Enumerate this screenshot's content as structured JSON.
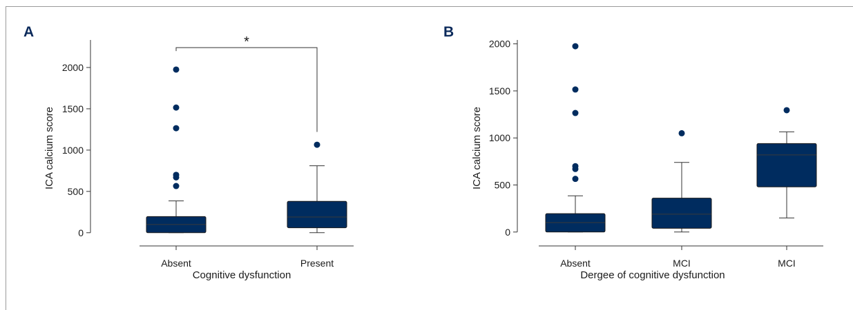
{
  "colors": {
    "box_fill": "#002c5f",
    "outlier": "#002c5f",
    "line": "#333333",
    "panel_label": "#0b2a5b"
  },
  "chart_data": [
    {
      "panel": "A",
      "type": "box",
      "xlabel": "Cognitive dysfunction",
      "ylabel": "ICA calcium score",
      "ylim": [
        -60,
        2400
      ],
      "yticks": [
        0,
        500,
        1000,
        1500,
        2000
      ],
      "categories": [
        "Absent",
        "Present"
      ],
      "boxes": [
        {
          "category": "Absent",
          "min": 0,
          "q1": 0,
          "median": 100,
          "q3": 195,
          "max": 385,
          "outliers": [
            565,
            670,
            700,
            1265,
            1515,
            1975
          ]
        },
        {
          "category": "Present",
          "min": 0,
          "q1": 60,
          "median": 190,
          "q3": 380,
          "max": 810,
          "outliers": [
            1065
          ]
        }
      ],
      "significance": {
        "from": "Absent",
        "to": "Present",
        "y": 2240,
        "right_drop_to": 1220,
        "label": "*"
      }
    },
    {
      "panel": "B",
      "type": "box",
      "xlabel": "Dergee of cognitive dysfunction",
      "ylabel": "ICA calcium score",
      "ylim": [
        -60,
        2100
      ],
      "yticks": [
        0,
        500,
        1000,
        1500,
        2000
      ],
      "categories": [
        "Absent",
        "MCI",
        "MCI"
      ],
      "boxes": [
        {
          "category": "Absent",
          "min": 0,
          "q1": 0,
          "median": 100,
          "q3": 195,
          "max": 385,
          "outliers": [
            565,
            670,
            700,
            1265,
            1515,
            1975
          ]
        },
        {
          "category": "MCI",
          "min": 0,
          "q1": 40,
          "median": 190,
          "q3": 360,
          "max": 740,
          "outliers": [
            1050
          ]
        },
        {
          "category": "MCI",
          "min": 150,
          "q1": 480,
          "median": 820,
          "q3": 940,
          "max": 1065,
          "outliers": [
            1295
          ]
        }
      ]
    }
  ]
}
